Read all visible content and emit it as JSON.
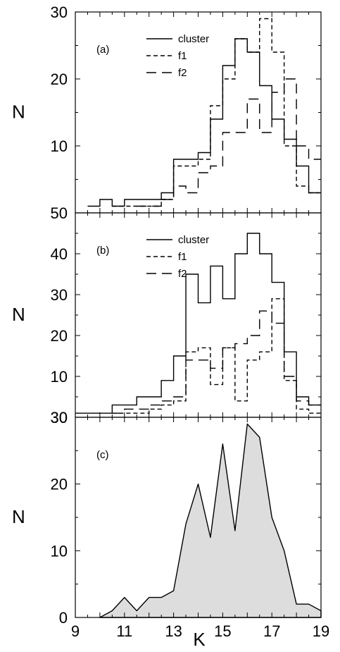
{
  "chart_data": [
    {
      "type": "line",
      "panel_label": "(a)",
      "ylabel": "N",
      "xlim": [
        9,
        19
      ],
      "ylim": [
        0,
        30
      ],
      "y_ticks": [
        "10",
        "20",
        "30"
      ],
      "y_bottom_label": "50",
      "legend_position": "top-center",
      "series": [
        {
          "name": "cluster",
          "style": "solid",
          "x": [
            10,
            10.5,
            11,
            11.5,
            12,
            12.5,
            13,
            13.5,
            14,
            14.5,
            15,
            15.5,
            16,
            16.5,
            17,
            17.5,
            18,
            18.5,
            19
          ],
          "values": [
            1,
            2,
            1,
            2,
            2,
            2,
            3,
            8,
            8,
            9,
            14,
            22,
            26,
            24,
            19,
            14,
            11,
            7,
            3
          ]
        },
        {
          "name": "f1",
          "style": "short-dash",
          "x": [
            11,
            11.5,
            12,
            12.5,
            13,
            13.5,
            14,
            14.5,
            15,
            15.5,
            16,
            16.5,
            17,
            17.5,
            18,
            18.5,
            19
          ],
          "values": [
            1,
            1,
            1,
            1,
            2,
            7,
            7,
            8,
            16,
            20,
            26,
            24,
            29,
            24,
            10,
            4,
            3
          ]
        },
        {
          "name": "f2",
          "style": "long-dash",
          "x": [
            12,
            12.5,
            13,
            13.5,
            14,
            14.5,
            15,
            15.5,
            16,
            16.5,
            17,
            17.5,
            18,
            18.5,
            19
          ],
          "values": [
            1,
            1,
            2,
            4,
            3,
            6,
            7,
            12,
            12,
            17,
            12,
            18,
            20,
            10,
            8
          ]
        }
      ]
    },
    {
      "type": "line",
      "panel_label": "(b)",
      "ylabel": "N",
      "xlim": [
        9,
        19
      ],
      "ylim": [
        0,
        50
      ],
      "y_ticks": [
        "10",
        "20",
        "30",
        "40"
      ],
      "y_bottom_label": "30",
      "legend_position": "top-center",
      "series": [
        {
          "name": "cluster",
          "style": "solid",
          "x": [
            9.5,
            10,
            10.5,
            11,
            11.5,
            12,
            12.5,
            13,
            13.5,
            14,
            14.5,
            15,
            15.5,
            16,
            16.5,
            17,
            17.5,
            18,
            18.5,
            19
          ],
          "values": [
            1,
            1,
            1,
            3,
            3,
            5,
            5,
            9,
            15,
            35,
            28,
            37,
            29,
            40,
            45,
            40,
            33,
            16,
            5,
            3
          ]
        },
        {
          "name": "f1",
          "style": "short-dash",
          "x": [
            11,
            11.5,
            12,
            12.5,
            13,
            13.5,
            14,
            14.5,
            15,
            15.5,
            16,
            16.5,
            17,
            17.5,
            18,
            18.5,
            19
          ],
          "values": [
            1,
            1,
            1,
            2,
            3,
            4,
            16,
            17,
            8,
            17,
            4,
            14,
            16,
            29,
            9,
            2,
            1
          ]
        },
        {
          "name": "f2",
          "style": "long-dash",
          "x": [
            11,
            11.5,
            12,
            12.5,
            13,
            13.5,
            14,
            14.5,
            15,
            15.5,
            16,
            16.5,
            17,
            17.5,
            18,
            18.5,
            19
          ],
          "values": [
            1,
            2,
            2,
            3,
            4,
            5,
            14,
            14,
            12,
            17,
            18,
            20,
            26,
            23,
            10,
            4,
            3
          ]
        }
      ]
    },
    {
      "type": "area",
      "panel_label": "(c)",
      "ylabel": "N",
      "xlabel": "K",
      "xlim": [
        9,
        19
      ],
      "ylim": [
        0,
        30
      ],
      "x_ticks": [
        "9",
        "11",
        "13",
        "15",
        "17",
        "19"
      ],
      "y_ticks": [
        "0",
        "10",
        "20",
        "30"
      ],
      "fill_color": "#dddddd",
      "x": [
        10,
        10.5,
        11,
        11.5,
        12,
        12.5,
        13,
        13.5,
        14,
        14.5,
        15,
        15.5,
        16,
        16.5,
        17,
        17.5,
        18,
        18.5,
        19
      ],
      "values": [
        0,
        1,
        3,
        1,
        3,
        3,
        4,
        14,
        20,
        12,
        26,
        13,
        29,
        27,
        15,
        10,
        2,
        2,
        1
      ]
    }
  ]
}
